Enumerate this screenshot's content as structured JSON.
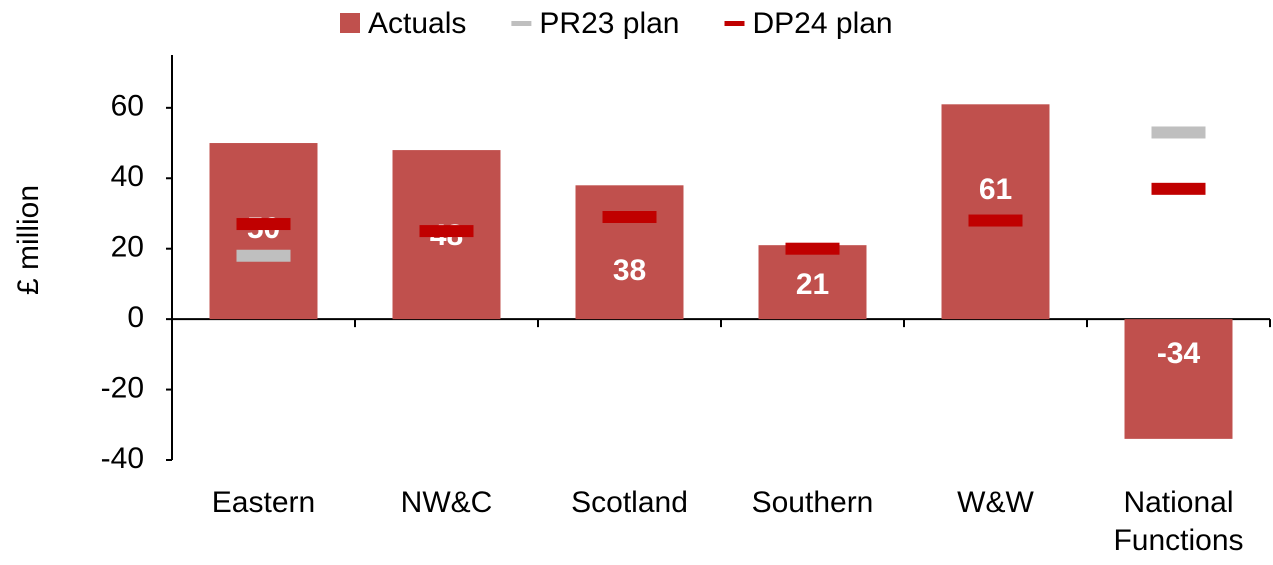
{
  "chart_data": {
    "type": "bar",
    "categories": [
      "Eastern",
      "NW&C",
      "Scotland",
      "Southern",
      "W&W",
      "National Functions"
    ],
    "y_label": "£ million",
    "series": [
      {
        "name": "Actuals",
        "color": "#c0504d",
        "values": [
          50,
          48,
          38,
          21,
          61,
          -34
        ]
      },
      {
        "name": "PR23 plan",
        "color": "#bfbfbf",
        "values": [
          18,
          null,
          null,
          null,
          null,
          53
        ]
      },
      {
        "name": "DP24 plan",
        "color": "#c00000",
        "values": [
          27,
          25,
          29,
          20,
          28,
          37
        ]
      }
    ],
    "ylim": [
      -40,
      75
    ],
    "yticks": [
      -40,
      -20,
      0,
      20,
      40,
      60
    ],
    "grid": false,
    "legend": "top"
  }
}
